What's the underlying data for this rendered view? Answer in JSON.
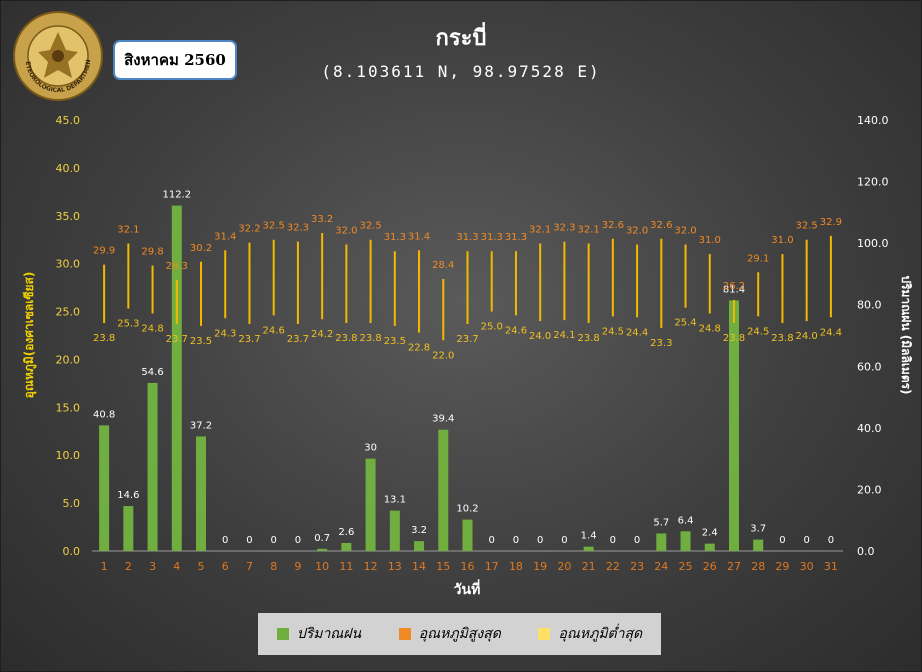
{
  "badge": {
    "text": "สิงหาคม 2560"
  },
  "logo": {
    "text": "METEOROLOGICAL DEPARTMENT",
    "icon": "meteorological-department-seal"
  },
  "colors": {
    "rain": "#6fae3f",
    "tmax": "#f08a24",
    "tmin": "#f0c020",
    "axis_left": "#f0d000",
    "tick_left": "#f0d040",
    "xtick": "#e07820"
  },
  "chart_data": {
    "type": "bar",
    "title": "กระบี่",
    "subtitle": "(8.103611 N, 98.97528 E)",
    "xlabel": "วันที่",
    "ylabel_left": "อุณหภูมิ(องศาเซลเซียส)",
    "ylabel_right": "ปริมาณฝน (มิลลิเมตร)",
    "ylim_left": [
      0,
      45
    ],
    "ylim_right": [
      0,
      140
    ],
    "yticks_left": [
      "0.0",
      "5.0",
      "10.0",
      "15.0",
      "20.0",
      "25.0",
      "30.0",
      "35.0",
      "40.0",
      "45.0"
    ],
    "yticks_right": [
      "0.0",
      "20.0",
      "40.0",
      "60.0",
      "80.0",
      "100.0",
      "120.0",
      "140.0"
    ],
    "categories": [
      "1",
      "2",
      "3",
      "4",
      "5",
      "6",
      "7",
      "8",
      "9",
      "10",
      "11",
      "12",
      "13",
      "14",
      "15",
      "16",
      "17",
      "18",
      "19",
      "20",
      "21",
      "22",
      "23",
      "24",
      "25",
      "26",
      "27",
      "28",
      "29",
      "30",
      "31"
    ],
    "grid": false,
    "legend_position": "bottom",
    "series": [
      {
        "name": "ปริมาณฝน",
        "type": "bar",
        "axis": "right",
        "values": [
          40.8,
          14.6,
          54.6,
          112.2,
          37.2,
          0,
          0,
          0,
          0,
          0.7,
          2.6,
          30,
          13.1,
          3.2,
          39.4,
          10.2,
          0,
          0,
          0,
          0,
          1.4,
          0,
          0,
          5.7,
          6.4,
          2.4,
          81.4,
          3.7,
          0,
          0,
          0
        ],
        "labels": [
          "40.8",
          "14.6",
          "54.6",
          "112.2",
          "37.2",
          "0",
          "0",
          "0",
          "0",
          "0.7",
          "2.6",
          "30",
          "13.1",
          "3.2",
          "39.4",
          "10.2",
          "0",
          "0",
          "0",
          "0",
          "1.4",
          "0",
          "0",
          "5.7",
          "6.4",
          "2.4",
          "81.4",
          "3.7",
          "0",
          "0",
          "0"
        ]
      },
      {
        "name": "อุณหภูมิสูงสุด",
        "type": "range-high",
        "axis": "left",
        "values": [
          29.9,
          32.1,
          29.8,
          28.3,
          30.2,
          31.4,
          32.2,
          32.5,
          32.3,
          33.2,
          32.0,
          32.5,
          31.3,
          31.4,
          28.4,
          31.3,
          31.3,
          31.3,
          32.1,
          32.3,
          32.1,
          32.6,
          32.0,
          32.6,
          32.0,
          31.0,
          26.2,
          29.1,
          31.0,
          32.5,
          32.9
        ],
        "labels": [
          "29.9",
          "32.1",
          "29.8",
          "28.3",
          "30.2",
          "31.4",
          "32.2",
          "32.5",
          "32.3",
          "33.2",
          "32.0",
          "32.5",
          "31.3",
          "31.4",
          "28.4",
          "31.3",
          "31.3",
          "31.3",
          "32.1",
          "32.3",
          "32.1",
          "32.6",
          "32.0",
          "32.6",
          "32.0",
          "31.0",
          "26.2",
          "29.1",
          "31.0",
          "32.5",
          "32.9"
        ]
      },
      {
        "name": "อุณหภูมิต่ำสุด",
        "type": "range-low",
        "axis": "left",
        "values": [
          23.8,
          25.3,
          24.8,
          23.7,
          23.5,
          24.3,
          23.7,
          24.6,
          23.7,
          24.2,
          23.8,
          23.8,
          23.5,
          22.8,
          22.0,
          23.7,
          25.0,
          24.6,
          24.0,
          24.1,
          23.8,
          24.5,
          24.4,
          23.3,
          25.4,
          24.8,
          23.8,
          24.5,
          23.8,
          24.0,
          24.4
        ],
        "labels": [
          "23.8",
          "25.3",
          "24.8",
          "23.7",
          "23.5",
          "24.3",
          "23.7",
          "24.6",
          "23.7",
          "24.2",
          "23.8",
          "23.8",
          "23.5",
          "22.8",
          "22.0",
          "23.7",
          "25.0",
          "24.6",
          "24.0",
          "24.1",
          "23.8",
          "24.5",
          "24.4",
          "23.3",
          "25.4",
          "24.8",
          "23.8",
          "24.5",
          "23.8",
          "24.0",
          "24.4"
        ]
      }
    ]
  }
}
